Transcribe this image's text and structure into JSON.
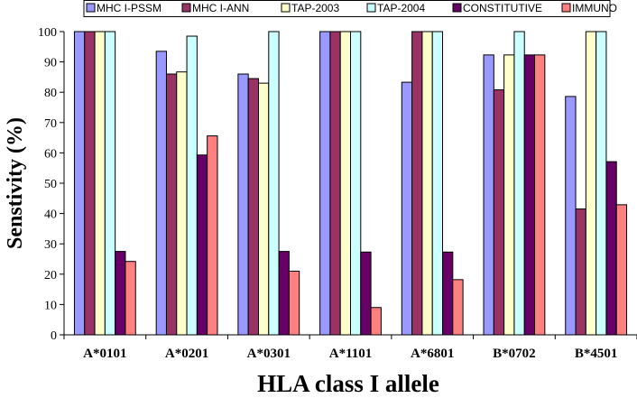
{
  "chart_data": {
    "type": "bar",
    "title": "",
    "xlabel": "HLA class I allele",
    "ylabel": "Senstivity (%)",
    "ylim": [
      0,
      100
    ],
    "yticks": [
      0,
      10,
      20,
      30,
      40,
      50,
      60,
      70,
      80,
      90,
      100
    ],
    "grid": false,
    "legend_position": "top",
    "categories": [
      "A*0101",
      "A*0201",
      "A*0301",
      "A*1101",
      "A*6801",
      "B*0702",
      "B*4501"
    ],
    "series": [
      {
        "name": "MHC I-PSSM",
        "color": "#9999FF",
        "values": [
          100,
          93.5,
          86,
          100,
          83.3,
          92.3,
          78.6
        ]
      },
      {
        "name": "MHC I-ANN",
        "color": "#993366",
        "values": [
          100,
          86,
          84.5,
          100,
          100,
          80.8,
          41.5
        ]
      },
      {
        "name": "TAP-2003",
        "color": "#FFFFCC",
        "values": [
          100,
          86.7,
          83,
          100,
          100,
          92.3,
          100
        ]
      },
      {
        "name": "TAP-2004",
        "color": "#CCFFFF",
        "values": [
          100,
          98.5,
          100,
          100,
          100,
          100,
          100
        ]
      },
      {
        "name": "CONSTITUTIVE",
        "color": "#660066",
        "values": [
          27.5,
          59.3,
          27.5,
          27.3,
          27.3,
          92.3,
          57.1
        ]
      },
      {
        "name": "IMMUNO",
        "color": "#FF8080",
        "values": [
          24.2,
          65.6,
          21,
          9,
          18.2,
          92.3,
          42.9
        ]
      }
    ]
  }
}
